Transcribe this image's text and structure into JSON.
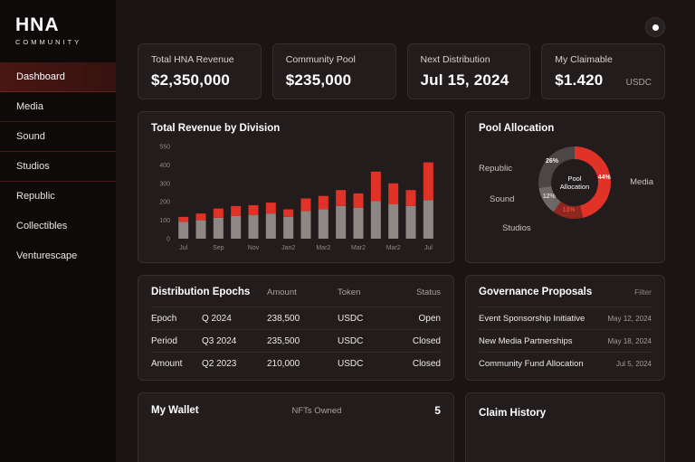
{
  "app": {
    "logo": "HNA",
    "logo_sub": "COMMUNITY"
  },
  "sidebar": {
    "items": [
      {
        "label": "Dashboard",
        "active": true
      },
      {
        "label": "Media"
      },
      {
        "label": "Sound"
      },
      {
        "label": "Studios"
      },
      {
        "label": "Republic"
      },
      {
        "label": "Collectibles"
      },
      {
        "label": "Venturescape"
      }
    ]
  },
  "stats": [
    {
      "label": "Total HNA Revenue",
      "value": "$2,350,000"
    },
    {
      "label": "Community Pool",
      "value": "$235,000"
    },
    {
      "label": "Next Distribution",
      "value": "Jul 15, 2024"
    },
    {
      "label": "My Claimable",
      "value": "$1.420",
      "unit": "USDC"
    }
  ],
  "chart_data": [
    {
      "type": "bar",
      "title": "Total Revenue by Division",
      "stacked": true,
      "x_tick_labels": [
        "Jul",
        "Sep",
        "Nov",
        "Jan2",
        "Mar2",
        "Mar2",
        "Mar2",
        "Jul"
      ],
      "y_ticks": [
        0,
        100,
        200,
        300,
        400,
        550
      ],
      "ylim": [
        0,
        550
      ],
      "series": [
        {
          "name": "base",
          "color": "#8e8884",
          "values": [
            100,
            110,
            125,
            135,
            140,
            150,
            130,
            165,
            175,
            195,
            185,
            225,
            205,
            195,
            230
          ]
        },
        {
          "name": "top",
          "color": "#e03226",
          "values": [
            30,
            40,
            55,
            60,
            60,
            65,
            45,
            75,
            80,
            95,
            85,
            175,
            125,
            95,
            225
          ]
        }
      ]
    },
    {
      "type": "donut",
      "title": "Pool Allocation",
      "center_label_lines": [
        "Pool",
        "Allocation"
      ],
      "slices": [
        {
          "label": "Media",
          "value": 44,
          "color": "#e03226",
          "pct_color": "#ffffff"
        },
        {
          "label": "Studios",
          "value": 13,
          "color": "#8f271e",
          "pct_color": "#e0493c"
        },
        {
          "label": "Sound",
          "value": 12,
          "color": "#6e6765",
          "pct_color": "#d8d3d1"
        },
        {
          "label": "Republic",
          "value": 26,
          "color": "#4c4644",
          "pct_color": "#f4f1f0"
        }
      ]
    }
  ],
  "epochs": {
    "title": "Distribution Epochs",
    "columns": [
      "Amount",
      "Token",
      "Status"
    ],
    "rows": [
      {
        "label": "Epoch",
        "period": "Q 2024",
        "amount": "238,500",
        "token": "USDC",
        "status": "Open"
      },
      {
        "label": "Period",
        "period": "Q3 2024",
        "amount": "235,500",
        "token": "USDC",
        "status": "Closed"
      },
      {
        "label": "Amount",
        "period": "Q2 2023",
        "amount": "210,000",
        "token": "USDC",
        "status": "Closed"
      }
    ]
  },
  "governance": {
    "title": "Governance Proposals",
    "filter_label": "Filter",
    "rows": [
      {
        "name": "Event Sponsorship Initiative",
        "date": "May 12, 2024"
      },
      {
        "name": "New Media Partnerships",
        "date": "May 18, 2024"
      },
      {
        "name": "Community Fund Allocation",
        "date": "Jul 5, 2024"
      }
    ]
  },
  "wallet": {
    "title": "My Wallet",
    "nfts_label": "NFTs Owned",
    "nfts_value": "5"
  },
  "claim": {
    "title": "Claim History"
  }
}
